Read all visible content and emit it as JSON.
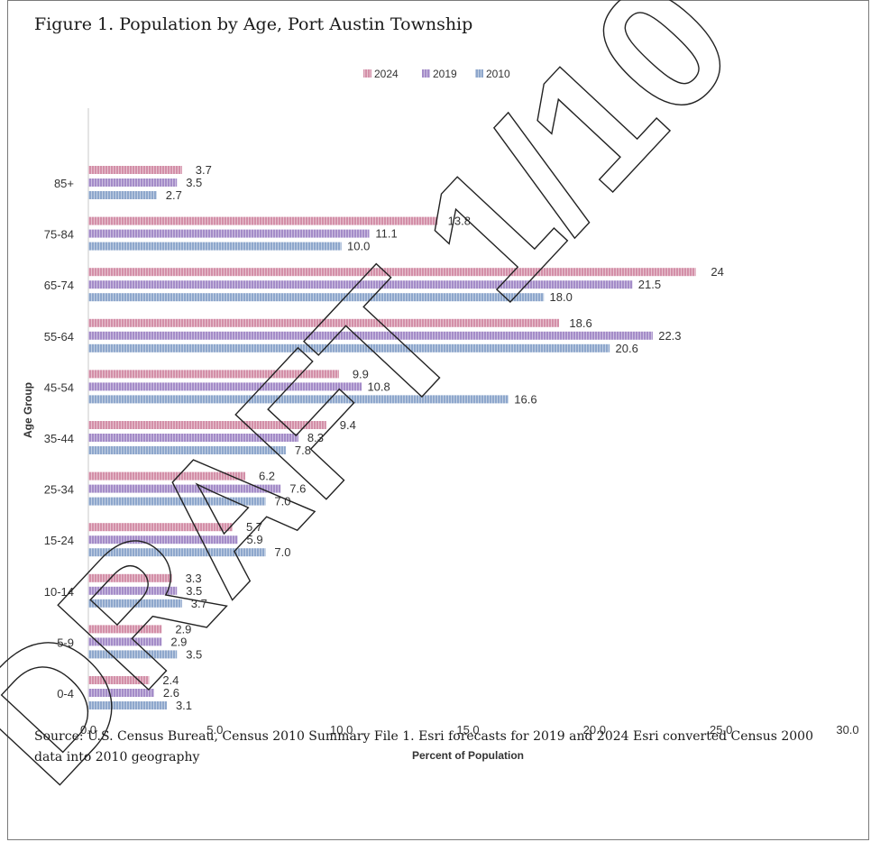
{
  "page": {
    "title": "Figure 1. Population by Age, Port Austin Township",
    "source": "Source: U.S. Census Bureau, Census 2010 Summary File 1. Esri forecasts for 2019 and 2024 Esri converted Census 2000 data into 2010 geography",
    "watermark": "DRAFT 1/10"
  },
  "chart_data": {
    "type": "bar",
    "orientation": "horizontal",
    "title": "Figure 1. Population by Age, Port Austin Township",
    "xlabel": "Percent of Population",
    "ylabel": "Age Group",
    "xlim": [
      0,
      30
    ],
    "xticks": [
      "0.0",
      "5.0",
      "10.0",
      "15.0",
      "20.0",
      "25.0",
      "30.0"
    ],
    "grid": false,
    "legend_position": "top",
    "categories": [
      "85+",
      "75-84",
      "65-74",
      "55-64",
      "45-54",
      "35-44",
      "25-34",
      "15-24",
      "10-14",
      "5-9",
      "0-4"
    ],
    "series": [
      {
        "name": "2024",
        "color": "#d38fa8",
        "values": [
          3.7,
          13.8,
          24,
          18.6,
          9.9,
          9.4,
          6.2,
          5.7,
          3.3,
          2.9,
          2.4
        ],
        "labels": [
          "3.7",
          "13.8",
          "24",
          "18.6",
          "9.9",
          "9.4",
          "6.2",
          "5.7",
          "3.3",
          "2.9",
          "2.4"
        ]
      },
      {
        "name": "2019",
        "color": "#a48cc8",
        "values": [
          3.5,
          11.1,
          21.5,
          22.3,
          10.8,
          8.3,
          7.6,
          5.9,
          3.5,
          2.9,
          2.6
        ],
        "labels": [
          "3.5",
          "11.1",
          "21.5",
          "22.3",
          "10.8",
          "8.3",
          "7.6",
          "5.9",
          "3.5",
          "2.9",
          "2.6"
        ]
      },
      {
        "name": "2010",
        "color": "#8ea7cc",
        "values": [
          2.7,
          10.0,
          18.0,
          20.6,
          16.6,
          7.8,
          7.0,
          7.0,
          3.7,
          3.5,
          3.1
        ],
        "labels": [
          "2.7",
          "10.0",
          "18.0",
          "20.6",
          "16.6",
          "7.8",
          "7.0",
          "7.0",
          "3.7",
          "3.5",
          "3.1"
        ]
      }
    ]
  }
}
